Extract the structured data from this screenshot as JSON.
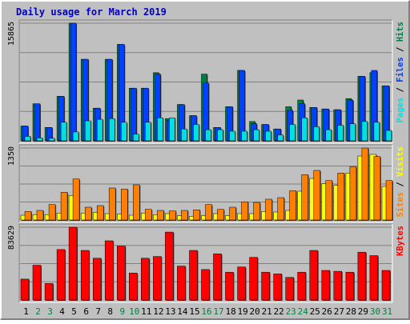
{
  "chart_data": {
    "type": "bar",
    "title": "Daily usage for March 2019",
    "colors": {
      "background": "#c0c0c0",
      "title": "#0000c0",
      "hits": "#008040",
      "files": "#0040ff",
      "pages": "#00e0e0",
      "visits": "#ffff00",
      "sites": "#ff8000",
      "kbytes": "#ff0000",
      "weekend_label": "#008040",
      "weekday_label": "#000000"
    },
    "categories": [
      "1",
      "2",
      "3",
      "4",
      "5",
      "6",
      "7",
      "8",
      "9",
      "10",
      "11",
      "12",
      "13",
      "14",
      "15",
      "16",
      "17",
      "18",
      "19",
      "20",
      "21",
      "22",
      "23",
      "24",
      "25",
      "26",
      "27",
      "28",
      "29",
      "30",
      "31"
    ],
    "weekend_days": [
      2,
      3,
      9,
      10,
      16,
      17,
      23,
      24,
      30,
      31
    ],
    "panels": [
      {
        "id": "hits-files-pages",
        "y_max": 15865,
        "y_max_label": "15865",
        "side_label": [
          "Pages",
          "Files",
          "Hits"
        ],
        "series": [
          {
            "name": "Hits",
            "color": "#008040",
            "values": [
              2000,
              5000,
              1800,
              6000,
              15865,
              11000,
              4400,
              11000,
              13000,
              7100,
              7100,
              9200,
              3000,
              4900,
              3400,
              9000,
              1800,
              4600,
              9500,
              2600,
              2200,
              1600,
              4600,
              5500,
              4500,
              4300,
              4200,
              5700,
              8700,
              9200,
              7400
            ]
          },
          {
            "name": "Files",
            "color": "#0040ff",
            "values": [
              2000,
              5000,
              1800,
              6000,
              15865,
              11000,
              4400,
              11000,
              13000,
              7100,
              7100,
              9000,
              2800,
              4900,
              3400,
              7800,
              1800,
              4600,
              9500,
              2300,
              2200,
              1600,
              4100,
              5000,
              4500,
              4300,
              4200,
              5500,
              8700,
              9500,
              7400
            ]
          },
          {
            "name": "Pages",
            "color": "#00e0e0",
            "values": [
              600,
              400,
              350,
              2500,
              1200,
              2700,
              2900,
              3000,
              2500,
              900,
              2500,
              3100,
              3100,
              1600,
              2200,
              1500,
              1500,
              1300,
              1300,
              1500,
              1300,
              800,
              2200,
              3100,
              1900,
              1500,
              2100,
              2300,
              2600,
              2500,
              1400
            ]
          }
        ]
      },
      {
        "id": "visits-sites",
        "y_max": 1350,
        "y_max_label": "1350",
        "side_label": [
          "Sites",
          "Visits"
        ],
        "series": [
          {
            "name": "Visits",
            "color": "#ffff00",
            "values": [
              90,
              100,
              100,
              130,
              460,
              130,
              140,
              120,
              110,
              90,
              130,
              100,
              120,
              80,
              70,
              80,
              120,
              80,
              120,
              120,
              160,
              150,
              180,
              540,
              780,
              680,
              650,
              880,
              1200,
              1230,
              630
            ]
          },
          {
            "name": "Sites",
            "color": "#ff8000",
            "values": [
              160,
              180,
              290,
              520,
              770,
              240,
              270,
              600,
              580,
              660,
              200,
              180,
              170,
              180,
              190,
              290,
              200,
              240,
              340,
              330,
              390,
              420,
              550,
              850,
              930,
              740,
              880,
              1000,
              1350,
              1190,
              740
            ]
          }
        ]
      },
      {
        "id": "kbytes",
        "y_max": 83629,
        "y_max_label": "83629",
        "side_label": [
          "KBytes"
        ],
        "series": [
          {
            "name": "KBytes",
            "color": "#ff0000",
            "values": [
              24000,
              40000,
              19000,
              58000,
              83629,
              57000,
              48000,
              68000,
              62000,
              31000,
              48000,
              50000,
              78000,
              39000,
              57000,
              35000,
              53000,
              32000,
              38000,
              49000,
              32000,
              30000,
              26000,
              32000,
              57000,
              34000,
              33000,
              32000,
              55000,
              51000,
              34000
            ]
          }
        ]
      }
    ]
  }
}
